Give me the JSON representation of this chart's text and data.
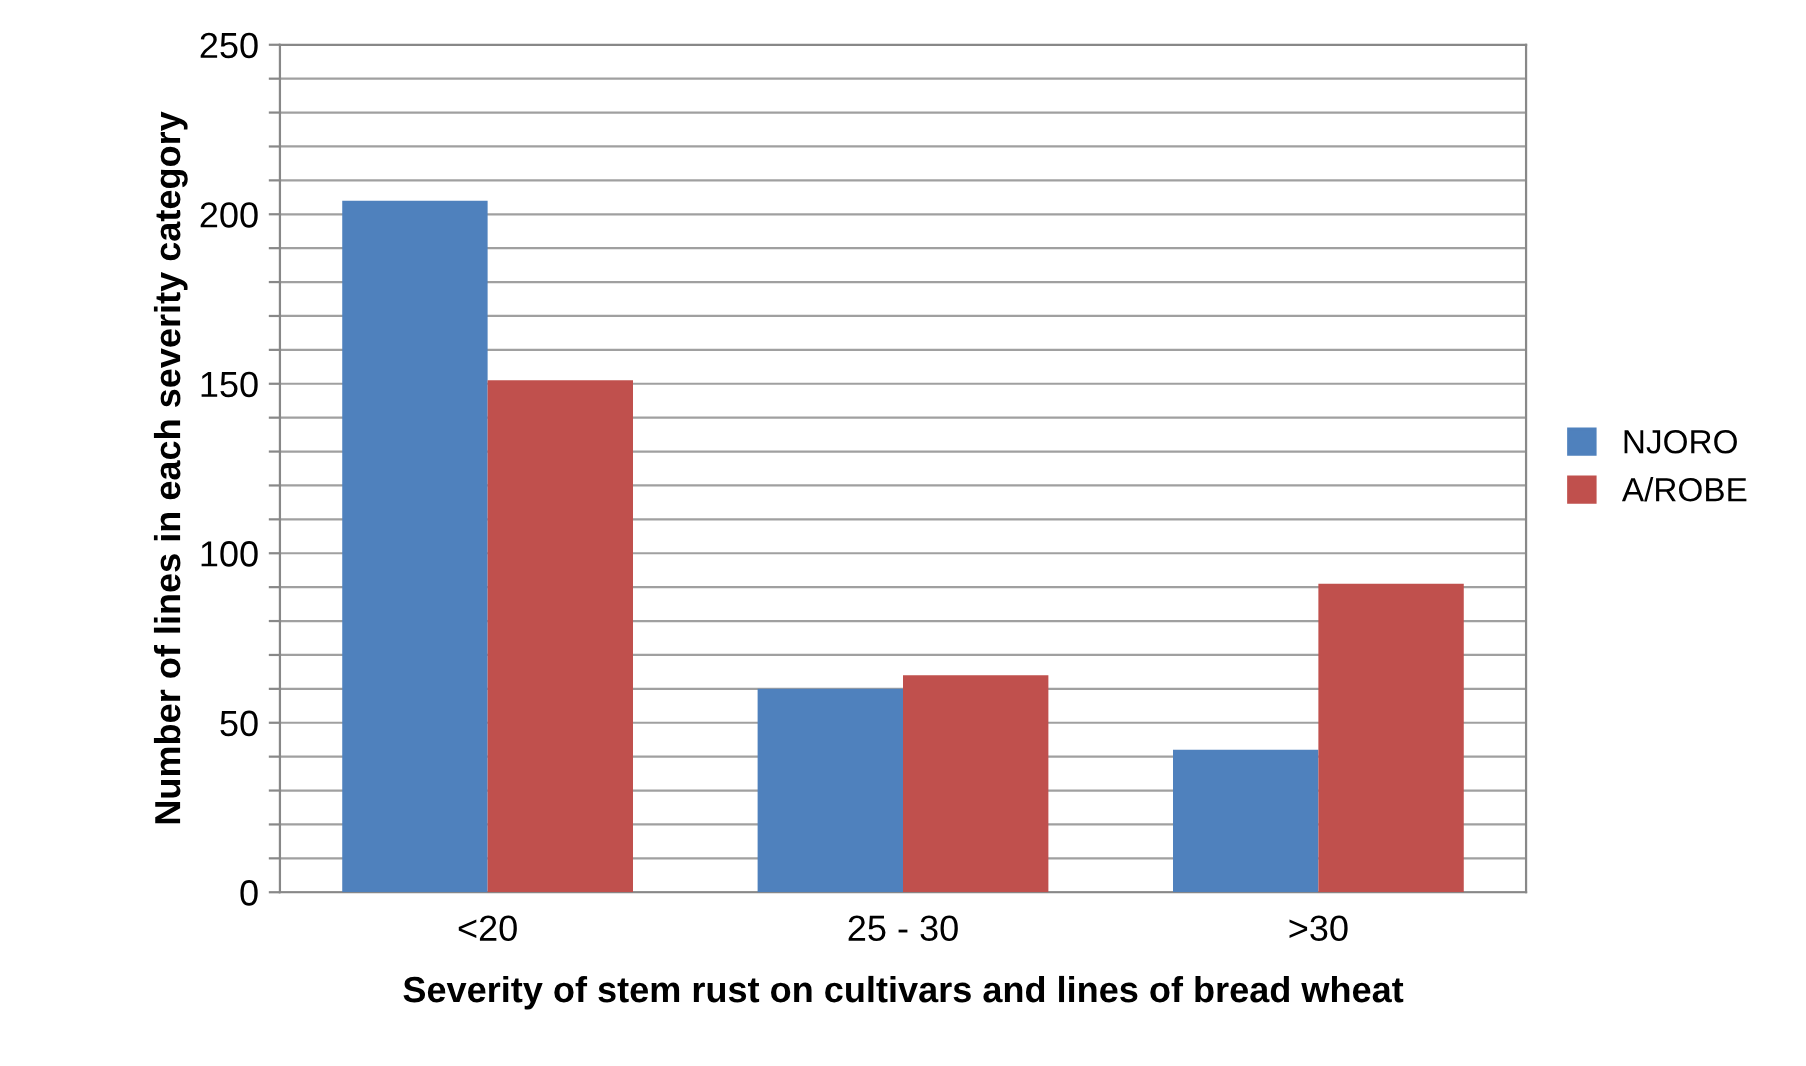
{
  "chart_data": {
    "type": "bar",
    "xlabel": "Severity of stem rust on cultivars and lines of bread wheat",
    "ylabel": "Number of lines in each severity category",
    "categories": [
      "<20",
      "25 - 30",
      ">30"
    ],
    "series": [
      {
        "name": "NJORO",
        "color": "#4f81bd",
        "values": [
          204,
          60,
          42
        ]
      },
      {
        "name": "A/ROBE",
        "color": "#c0504d",
        "values": [
          151,
          64,
          91
        ]
      }
    ],
    "ylim": [
      0,
      250
    ],
    "yticks": [
      0,
      {
        "value": 10,
        "label": null
      },
      {
        "value": 20,
        "label": null
      },
      {
        "value": 30,
        "label": null
      },
      {
        "value": 40,
        "label": null
      },
      50,
      {
        "value": 60,
        "label": null
      },
      {
        "value": 70,
        "label": null
      },
      {
        "value": 80,
        "label": null
      },
      {
        "value": 90,
        "label": null
      },
      100,
      {
        "value": 110,
        "label": null
      },
      {
        "value": 120,
        "label": null
      },
      {
        "value": 130,
        "label": null
      },
      {
        "value": 140,
        "label": null
      },
      150,
      {
        "value": 160,
        "label": null
      },
      {
        "value": 170,
        "label": null
      },
      {
        "value": 180,
        "label": null
      },
      {
        "value": 190,
        "label": null
      },
      200,
      {
        "value": 210,
        "label": null
      },
      {
        "value": 220,
        "label": null
      },
      {
        "value": 230,
        "label": null
      },
      {
        "value": 240,
        "label": null
      },
      250
    ],
    "grid": "y",
    "legend": "right"
  }
}
